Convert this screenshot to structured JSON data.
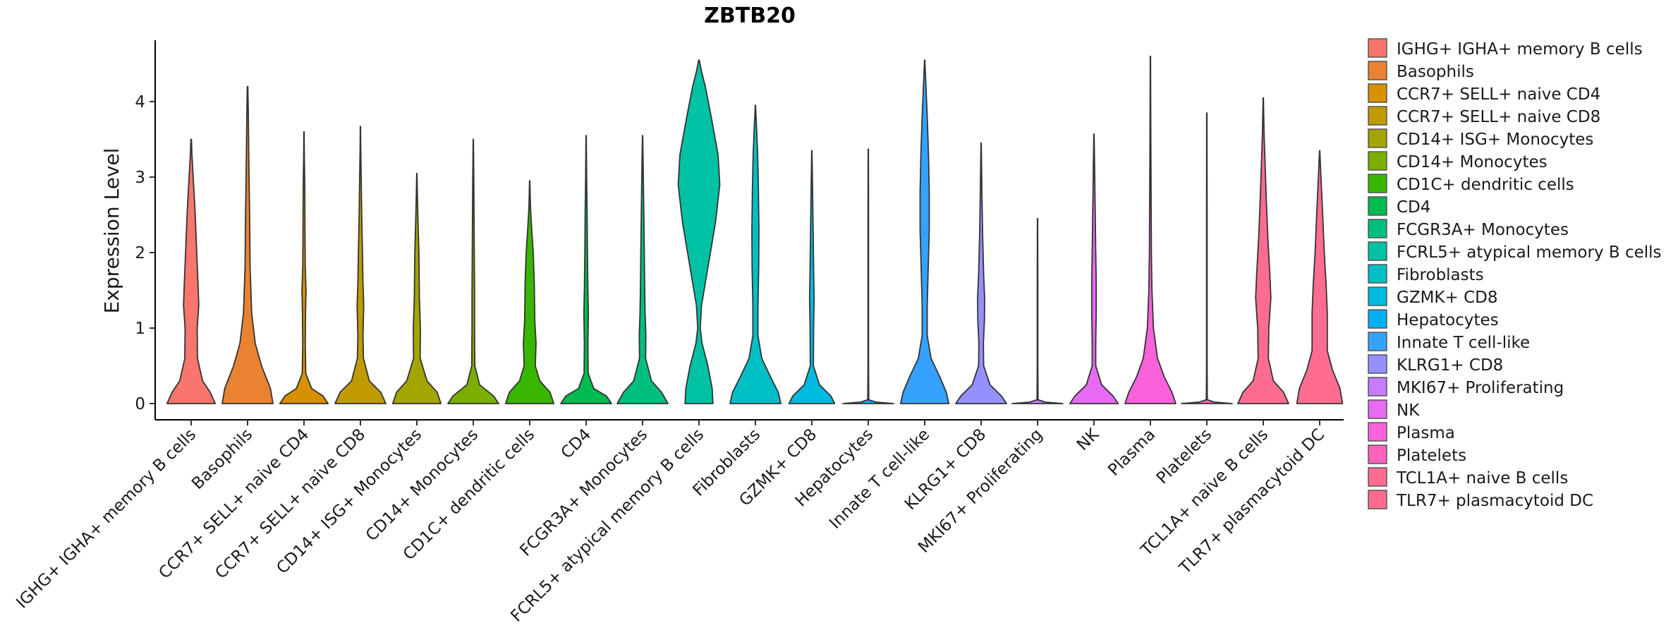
{
  "chart_data": {
    "type": "violin",
    "title": "ZBTB20",
    "xlabel": "",
    "ylabel": "Expression Level",
    "ylim": [
      -0.2,
      4.85
    ],
    "yticks": [
      0,
      1,
      2,
      3,
      4
    ],
    "grid": false,
    "legend_position": "right",
    "categories": [
      " IGHG+ IGHA+ memory B cells",
      "Basophils",
      "CCR7+ SELL+ naive CD4",
      "CCR7+ SELL+ naive CD8",
      "CD14+ ISG+ Monocytes",
      "CD14+ Monocytes",
      "CD1C+ dendritic cells",
      "CD4",
      "FCGR3A+ Monocytes",
      "FCRL5+ atypical memory B cells",
      "Fibroblasts",
      "GZMK+ CD8",
      "Hepatocytes",
      "Innate T cell-like",
      "KLRG1+ CD8",
      "MKI67+ Proliferating",
      "NK",
      "Plasma",
      "Platelets",
      "TCL1A+ naive B cells",
      "TLR7+ plasmacytoid DC"
    ],
    "colors": [
      "#F8766D",
      "#EA8331",
      "#D89000",
      "#C09B00",
      "#A3A500",
      "#7CAE00",
      "#39B600",
      "#00BB4E",
      "#00BF7D",
      "#00C1A3",
      "#00BFC4",
      "#00BAE0",
      "#00B0F6",
      "#35A2FF",
      "#9590FF",
      "#C77CFF",
      "#E76BF3",
      "#FA62DB",
      "#FF62BC",
      "#FF6C91",
      "#FF6C91"
    ],
    "series": [
      {
        "name": " IGHG+ IGHA+ memory B cells",
        "max": 3.5,
        "density": [
          [
            0,
            0.95
          ],
          [
            0.15,
            0.75
          ],
          [
            0.3,
            0.45
          ],
          [
            0.6,
            0.25
          ],
          [
            1.0,
            0.24
          ],
          [
            1.3,
            0.3
          ],
          [
            1.5,
            0.28
          ],
          [
            2.0,
            0.22
          ],
          [
            2.5,
            0.16
          ],
          [
            3.0,
            0.08
          ],
          [
            3.3,
            0.03
          ],
          [
            3.5,
            0.01
          ]
        ]
      },
      {
        "name": "Basophils",
        "max": 4.2,
        "density": [
          [
            0,
            1.0
          ],
          [
            0.2,
            0.9
          ],
          [
            0.5,
            0.55
          ],
          [
            0.8,
            0.3
          ],
          [
            1.2,
            0.16
          ],
          [
            1.8,
            0.1
          ],
          [
            2.5,
            0.08
          ],
          [
            3.2,
            0.05
          ],
          [
            3.8,
            0.03
          ],
          [
            4.2,
            0.01
          ]
        ]
      },
      {
        "name": "CCR7+ SELL+ naive CD4",
        "max": 3.6,
        "density": [
          [
            0,
            0.95
          ],
          [
            0.1,
            0.75
          ],
          [
            0.2,
            0.3
          ],
          [
            0.4,
            0.07
          ],
          [
            0.8,
            0.05
          ],
          [
            1.2,
            0.06
          ],
          [
            1.5,
            0.08
          ],
          [
            1.8,
            0.05
          ],
          [
            2.3,
            0.04
          ],
          [
            2.9,
            0.03
          ],
          [
            3.3,
            0.01
          ],
          [
            3.6,
            0.005
          ]
        ]
      },
      {
        "name": "CCR7+ SELL+ naive CD8",
        "max": 3.67,
        "density": [
          [
            0,
            1.0
          ],
          [
            0.15,
            0.8
          ],
          [
            0.3,
            0.35
          ],
          [
            0.6,
            0.12
          ],
          [
            0.9,
            0.1
          ],
          [
            1.3,
            0.13
          ],
          [
            1.6,
            0.1
          ],
          [
            2.0,
            0.08
          ],
          [
            2.5,
            0.05
          ],
          [
            3.0,
            0.03
          ],
          [
            3.4,
            0.01
          ],
          [
            3.67,
            0.005
          ]
        ]
      },
      {
        "name": "CD14+ ISG+ Monocytes",
        "max": 3.05,
        "density": [
          [
            0,
            0.95
          ],
          [
            0.15,
            0.8
          ],
          [
            0.3,
            0.4
          ],
          [
            0.6,
            0.13
          ],
          [
            1.0,
            0.14
          ],
          [
            1.4,
            0.1
          ],
          [
            2.0,
            0.08
          ],
          [
            2.5,
            0.04
          ],
          [
            2.8,
            0.02
          ],
          [
            3.05,
            0.005
          ]
        ]
      },
      {
        "name": "CD14+ Monocytes",
        "max": 3.5,
        "density": [
          [
            0,
            1.0
          ],
          [
            0.1,
            0.8
          ],
          [
            0.25,
            0.25
          ],
          [
            0.5,
            0.06
          ],
          [
            1.0,
            0.05
          ],
          [
            1.5,
            0.05
          ],
          [
            2.0,
            0.04
          ],
          [
            2.5,
            0.03
          ],
          [
            3.0,
            0.02
          ],
          [
            3.5,
            0.005
          ]
        ]
      },
      {
        "name": "CD1C+ dendritic cells",
        "max": 2.95,
        "density": [
          [
            0,
            0.95
          ],
          [
            0.15,
            0.8
          ],
          [
            0.3,
            0.4
          ],
          [
            0.5,
            0.22
          ],
          [
            0.8,
            0.25
          ],
          [
            1.1,
            0.2
          ],
          [
            1.6,
            0.18
          ],
          [
            2.0,
            0.14
          ],
          [
            2.3,
            0.08
          ],
          [
            2.6,
            0.03
          ],
          [
            2.95,
            0.005
          ]
        ]
      },
      {
        "name": "CD4",
        "max": 3.55,
        "density": [
          [
            0,
            1.0
          ],
          [
            0.1,
            0.8
          ],
          [
            0.2,
            0.3
          ],
          [
            0.4,
            0.08
          ],
          [
            0.8,
            0.07
          ],
          [
            1.2,
            0.09
          ],
          [
            1.5,
            0.07
          ],
          [
            2.0,
            0.05
          ],
          [
            2.5,
            0.04
          ],
          [
            3.0,
            0.02
          ],
          [
            3.55,
            0.005
          ]
        ]
      },
      {
        "name": "FCGR3A+ Monocytes",
        "max": 3.55,
        "density": [
          [
            0,
            1.0
          ],
          [
            0.15,
            0.75
          ],
          [
            0.3,
            0.35
          ],
          [
            0.6,
            0.12
          ],
          [
            0.9,
            0.13
          ],
          [
            1.2,
            0.1
          ],
          [
            1.6,
            0.08
          ],
          [
            2.0,
            0.07
          ],
          [
            2.5,
            0.05
          ],
          [
            3.0,
            0.03
          ],
          [
            3.55,
            0.005
          ]
        ]
      },
      {
        "name": "FCRL5+ atypical memory B cells",
        "max": 4.55,
        "density": [
          [
            0,
            0.55
          ],
          [
            0.2,
            0.52
          ],
          [
            0.5,
            0.35
          ],
          [
            0.8,
            0.12
          ],
          [
            1.0,
            0.05
          ],
          [
            1.3,
            0.1
          ],
          [
            1.8,
            0.35
          ],
          [
            2.4,
            0.65
          ],
          [
            2.9,
            0.82
          ],
          [
            3.3,
            0.75
          ],
          [
            3.8,
            0.48
          ],
          [
            4.2,
            0.25
          ],
          [
            4.4,
            0.1
          ],
          [
            4.55,
            0.01
          ]
        ]
      },
      {
        "name": "Fibroblasts",
        "max": 3.95,
        "density": [
          [
            0,
            1.0
          ],
          [
            0.15,
            0.9
          ],
          [
            0.35,
            0.6
          ],
          [
            0.6,
            0.25
          ],
          [
            0.9,
            0.1
          ],
          [
            1.3,
            0.1
          ],
          [
            1.8,
            0.13
          ],
          [
            2.3,
            0.14
          ],
          [
            2.8,
            0.12
          ],
          [
            3.3,
            0.09
          ],
          [
            3.7,
            0.04
          ],
          [
            3.95,
            0.005
          ]
        ]
      },
      {
        "name": "GZMK+ CD8",
        "max": 3.35,
        "density": [
          [
            0,
            0.9
          ],
          [
            0.1,
            0.75
          ],
          [
            0.25,
            0.3
          ],
          [
            0.5,
            0.06
          ],
          [
            1.0,
            0.07
          ],
          [
            1.4,
            0.09
          ],
          [
            1.8,
            0.07
          ],
          [
            2.3,
            0.05
          ],
          [
            2.8,
            0.03
          ],
          [
            3.35,
            0.005
          ]
        ]
      },
      {
        "name": "Hepatocytes",
        "max": 3.37,
        "density": [
          [
            0,
            1.0
          ],
          [
            0.02,
            0.3
          ],
          [
            0.05,
            0.02
          ],
          [
            0.5,
            0.01
          ],
          [
            1.5,
            0.01
          ],
          [
            2.5,
            0.01
          ],
          [
            3.37,
            0.005
          ]
        ]
      },
      {
        "name": "Innate T cell-like",
        "max": 4.55,
        "density": [
          [
            0,
            0.95
          ],
          [
            0.15,
            0.85
          ],
          [
            0.35,
            0.6
          ],
          [
            0.6,
            0.25
          ],
          [
            0.9,
            0.1
          ],
          [
            1.3,
            0.1
          ],
          [
            1.8,
            0.14
          ],
          [
            2.3,
            0.18
          ],
          [
            2.8,
            0.18
          ],
          [
            3.3,
            0.15
          ],
          [
            3.8,
            0.1
          ],
          [
            4.2,
            0.05
          ],
          [
            4.55,
            0.005
          ]
        ]
      },
      {
        "name": "KLRG1+ CD8",
        "max": 3.45,
        "density": [
          [
            0,
            1.0
          ],
          [
            0.1,
            0.8
          ],
          [
            0.25,
            0.35
          ],
          [
            0.5,
            0.1
          ],
          [
            0.8,
            0.09
          ],
          [
            1.1,
            0.13
          ],
          [
            1.4,
            0.14
          ],
          [
            1.7,
            0.1
          ],
          [
            2.2,
            0.06
          ],
          [
            2.8,
            0.03
          ],
          [
            3.45,
            0.005
          ]
        ]
      },
      {
        "name": "MKI67+ Proliferating",
        "max": 2.45,
        "density": [
          [
            0,
            1.0
          ],
          [
            0.02,
            0.3
          ],
          [
            0.05,
            0.02
          ],
          [
            0.5,
            0.01
          ],
          [
            1.5,
            0.01
          ],
          [
            2.45,
            0.005
          ]
        ]
      },
      {
        "name": "NK",
        "max": 3.57,
        "density": [
          [
            0,
            0.95
          ],
          [
            0.1,
            0.75
          ],
          [
            0.25,
            0.3
          ],
          [
            0.5,
            0.07
          ],
          [
            0.8,
            0.07
          ],
          [
            1.2,
            0.09
          ],
          [
            1.6,
            0.09
          ],
          [
            2.0,
            0.07
          ],
          [
            2.5,
            0.05
          ],
          [
            3.0,
            0.03
          ],
          [
            3.57,
            0.005
          ]
        ]
      },
      {
        "name": "Plasma",
        "max": 4.6,
        "density": [
          [
            0,
            1.0
          ],
          [
            0.15,
            0.85
          ],
          [
            0.35,
            0.55
          ],
          [
            0.6,
            0.28
          ],
          [
            1.0,
            0.12
          ],
          [
            1.5,
            0.06
          ],
          [
            2.0,
            0.04
          ],
          [
            2.6,
            0.03
          ],
          [
            3.3,
            0.02
          ],
          [
            4.0,
            0.01
          ],
          [
            4.6,
            0.005
          ]
        ]
      },
      {
        "name": "Platelets",
        "max": 3.85,
        "density": [
          [
            0,
            1.0
          ],
          [
            0.02,
            0.3
          ],
          [
            0.05,
            0.02
          ],
          [
            0.5,
            0.01
          ],
          [
            1.5,
            0.01
          ],
          [
            2.5,
            0.01
          ],
          [
            3.85,
            0.005
          ]
        ]
      },
      {
        "name": "TCL1A+ naive B cells",
        "max": 4.05,
        "density": [
          [
            0,
            1.0
          ],
          [
            0.15,
            0.8
          ],
          [
            0.3,
            0.4
          ],
          [
            0.6,
            0.2
          ],
          [
            1.0,
            0.22
          ],
          [
            1.4,
            0.3
          ],
          [
            1.7,
            0.26
          ],
          [
            2.2,
            0.18
          ],
          [
            2.7,
            0.12
          ],
          [
            3.2,
            0.07
          ],
          [
            3.6,
            0.03
          ],
          [
            4.05,
            0.005
          ]
        ]
      },
      {
        "name": "TLR7+ plasmacytoid DC",
        "max": 3.35,
        "density": [
          [
            0,
            0.9
          ],
          [
            0.2,
            0.8
          ],
          [
            0.45,
            0.5
          ],
          [
            0.7,
            0.3
          ],
          [
            1.0,
            0.3
          ],
          [
            1.2,
            0.3
          ],
          [
            1.6,
            0.25
          ],
          [
            2.0,
            0.18
          ],
          [
            2.5,
            0.12
          ],
          [
            3.0,
            0.05
          ],
          [
            3.35,
            0.005
          ]
        ]
      }
    ]
  },
  "legend": {
    "entries": [
      " IGHG+ IGHA+ memory B cells",
      "Basophils",
      "CCR7+ SELL+ naive CD4",
      "CCR7+ SELL+ naive CD8",
      "CD14+ ISG+ Monocytes",
      "CD14+ Monocytes",
      "CD1C+ dendritic cells",
      "CD4",
      "FCGR3A+ Monocytes",
      "FCRL5+ atypical memory B cells",
      "Fibroblasts",
      "GZMK+ CD8",
      "Hepatocytes",
      "Innate T cell-like",
      "KLRG1+ CD8",
      "MKI67+ Proliferating",
      "NK",
      "Plasma",
      "Platelets",
      "TCL1A+ naive B cells",
      "TLR7+ plasmacytoid DC"
    ]
  }
}
